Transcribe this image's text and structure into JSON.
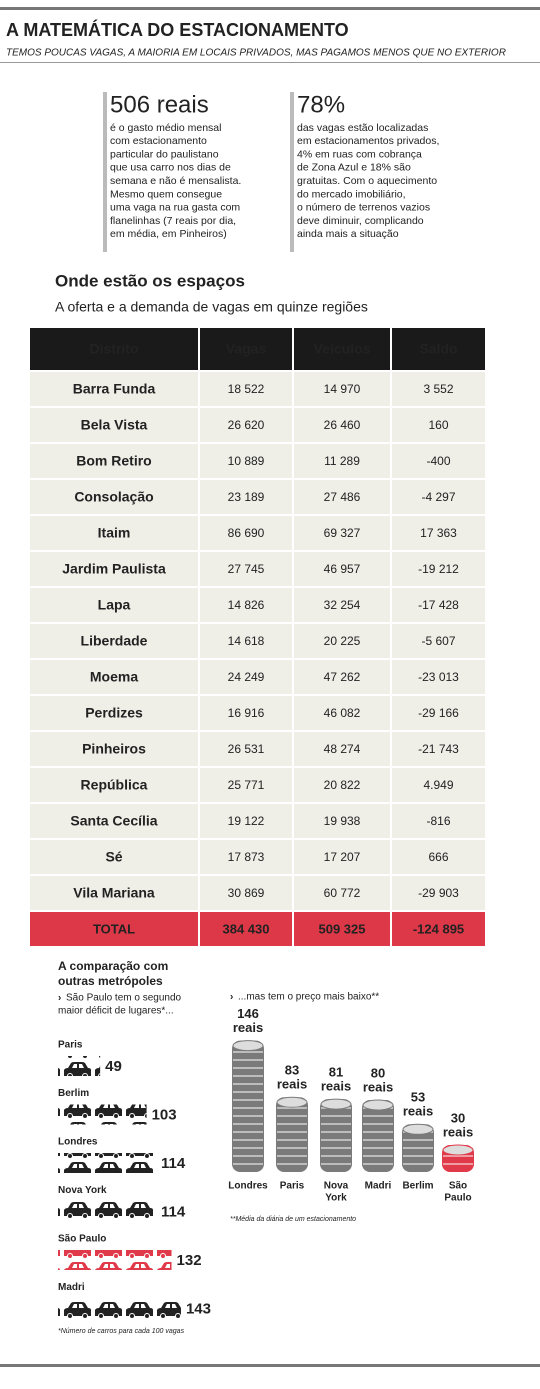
{
  "header": {
    "title": "A MATEMÁTICA DO ESTACIONAMENTO",
    "subtitle": "TEMOS POUCAS VAGAS, A MAIORIA EM LOCAIS PRIVADOS, MAS PAGAMOS MENOS QUE NO EXTERIOR"
  },
  "facts": [
    {
      "headline": "506 reais",
      "lines": [
        "é o gasto médio mensal",
        "com estacionamento",
        "particular do paulistano",
        "que usa carro nos dias de",
        "semana e não é mensalista.",
        "Mesmo quem consegue",
        "uma vaga na rua gasta com",
        "flanelinhas (7 reais por dia,",
        "em média, em Pinheiros)"
      ]
    },
    {
      "headline": "78%",
      "lines": [
        "das vagas estão localizadas",
        "em estacionamentos privados,",
        "4% em ruas com cobrança",
        "de Zona Azul e 18% são",
        "gratuitas. Com o aquecimento",
        "do mercado imobiliário,",
        "o número de terrenos vazios",
        "deve diminuir, complicando",
        "ainda mais a situação"
      ]
    }
  ],
  "table": {
    "title": "Onde estão os espaços",
    "subtitle": "A oferta e a demanda de vagas em quinze regiões",
    "columns": [
      "Distrito",
      "Vagas",
      "Veículos",
      "Saldo"
    ],
    "rows": [
      [
        "Barra Funda",
        "18 522",
        "14 970",
        "3 552"
      ],
      [
        "Bela Vista",
        "26 620",
        "26 460",
        "160"
      ],
      [
        "Bom Retiro",
        "10 889",
        "11 289",
        "-400"
      ],
      [
        "Consolação",
        "23 189",
        "27 486",
        "-4 297"
      ],
      [
        "Itaim",
        "86 690",
        "69 327",
        "17 363"
      ],
      [
        "Jardim Paulista",
        "27 745",
        "46 957",
        "-19 212"
      ],
      [
        "Lapa",
        "14 826",
        "32 254",
        "-17 428"
      ],
      [
        "Liberdade",
        "14 618",
        "20 225",
        "-5 607"
      ],
      [
        "Moema",
        "24 249",
        "47 262",
        "-23 013"
      ],
      [
        "Perdizes",
        "16 916",
        "46 082",
        "-29 166"
      ],
      [
        "Pinheiros",
        "26 531",
        "48 274",
        "-21 743"
      ],
      [
        "República",
        "25 771",
        "20 822",
        "4.949"
      ],
      [
        "Santa Cecília",
        "19 122",
        "19 938",
        "-816"
      ],
      [
        "Sé",
        "17 873",
        "17 207",
        "666"
      ],
      [
        "Vila Mariana",
        "30 869",
        "60 772",
        "-29 903"
      ]
    ],
    "total": [
      "TOTAL",
      "384 430",
      "509 325",
      "-124 895"
    ]
  },
  "comparison": {
    "title_lines": [
      "A comparação com",
      "outras metrópoles"
    ],
    "cars": {
      "subtitle_lines": [
        "São Paulo tem o segundo",
        "maior déficit de lugares*..."
      ],
      "items": [
        {
          "label": "Paris",
          "value": 49,
          "color": "#222222"
        },
        {
          "label": "Berlim",
          "value": 103,
          "color": "#222222"
        },
        {
          "label": "Londres",
          "value": 114,
          "color": "#222222"
        },
        {
          "label": "Nova York",
          "value": 114,
          "color": "#222222"
        },
        {
          "label": "São Paulo",
          "value": 132,
          "color": "#e03a4a"
        },
        {
          "label": "Madri",
          "value": 143,
          "color": "#222222"
        }
      ],
      "note": "*Número de carros para cada 100 vagas"
    },
    "prices": {
      "subtitle": "...mas tem o preço mais baixo**",
      "unit": "reais",
      "items": [
        {
          "label_lines": [
            "Londres"
          ],
          "value": 146,
          "color": "#7a7a7a"
        },
        {
          "label_lines": [
            "Paris"
          ],
          "value": 83,
          "color": "#7a7a7a"
        },
        {
          "label_lines": [
            "Nova",
            "York"
          ],
          "value": 81,
          "color": "#7a7a7a"
        },
        {
          "label_lines": [
            "Madri"
          ],
          "value": 80,
          "color": "#7a7a7a"
        },
        {
          "label_lines": [
            "Berlim"
          ],
          "value": 53,
          "color": "#7a7a7a"
        },
        {
          "label_lines": [
            "São",
            "Paulo"
          ],
          "value": 30,
          "color": "#e03a4a"
        }
      ],
      "note": "**Média da diária de um estacionamento"
    }
  }
}
